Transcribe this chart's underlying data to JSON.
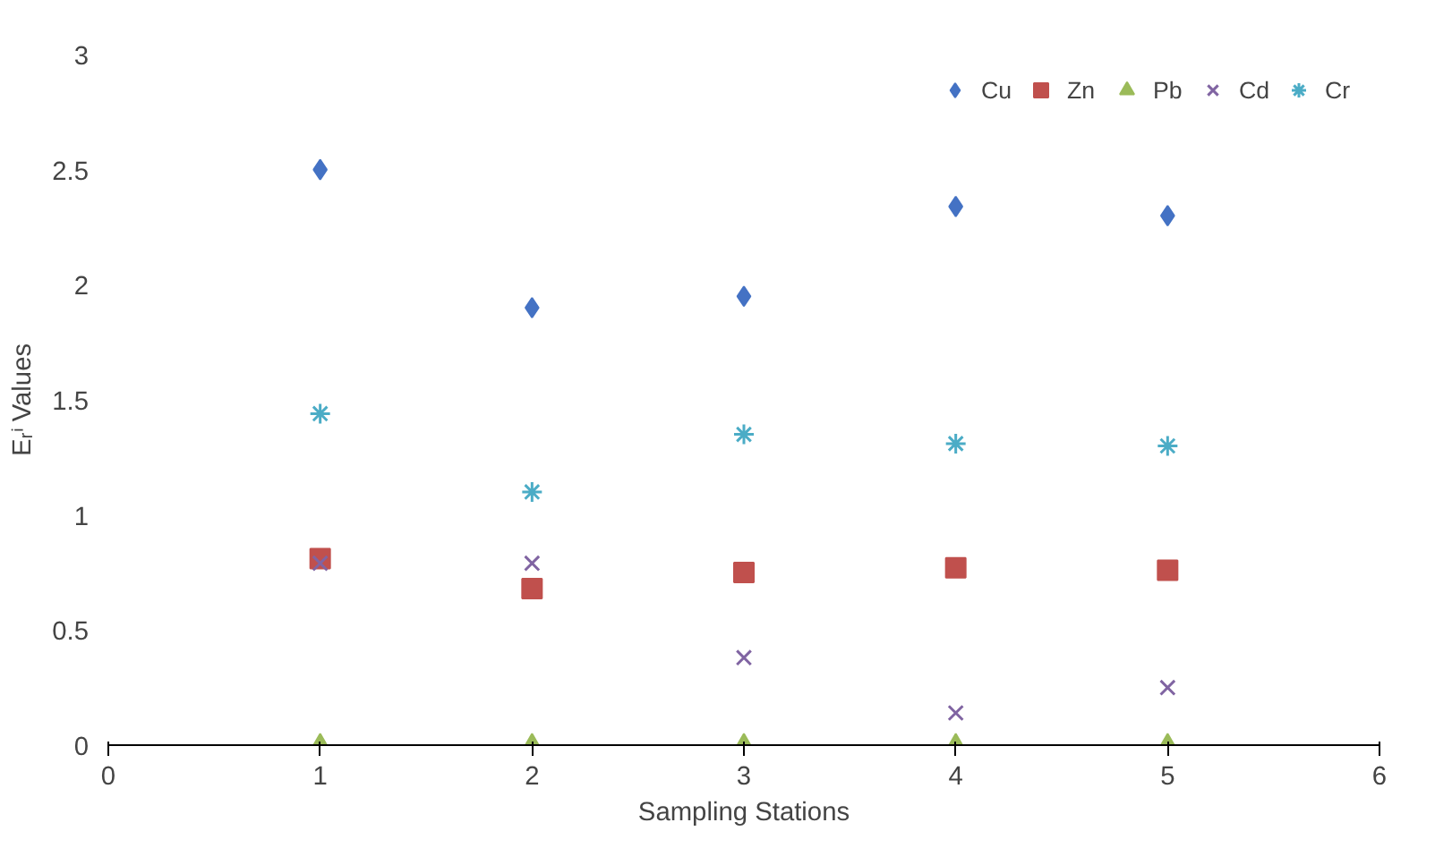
{
  "chart_data": {
    "type": "scatter",
    "xlabel": "Sampling Stations",
    "ylabel": "Eᵣⁱ Values",
    "x": [
      1,
      2,
      3,
      4,
      5
    ],
    "xlim": [
      0,
      6
    ],
    "xticks": [
      0,
      1,
      2,
      3,
      4,
      5,
      6
    ],
    "ylim": [
      0,
      3
    ],
    "yticks": [
      0,
      0.5,
      1,
      1.5,
      2,
      2.5,
      3
    ],
    "grid": false,
    "legend": "top right",
    "series": [
      {
        "name": "Cu",
        "color": "#4472c4",
        "marker": "diamond",
        "values": [
          2.5,
          1.9,
          1.95,
          2.34,
          2.3
        ]
      },
      {
        "name": "Zn",
        "color": "#c0504d",
        "marker": "square",
        "values": [
          0.81,
          0.68,
          0.75,
          0.77,
          0.76
        ]
      },
      {
        "name": "Pb",
        "color": "#9bbb59",
        "marker": "triangle",
        "values": [
          0,
          0,
          0,
          0,
          0
        ]
      },
      {
        "name": "Cd",
        "color": "#8064a2",
        "marker": "cross",
        "values": [
          0.79,
          0.79,
          0.38,
          0.14,
          0.25
        ]
      },
      {
        "name": "Cr",
        "color": "#4bacc6",
        "values": [
          1.44,
          1.1,
          1.35,
          1.31,
          1.3
        ]
      }
    ]
  }
}
